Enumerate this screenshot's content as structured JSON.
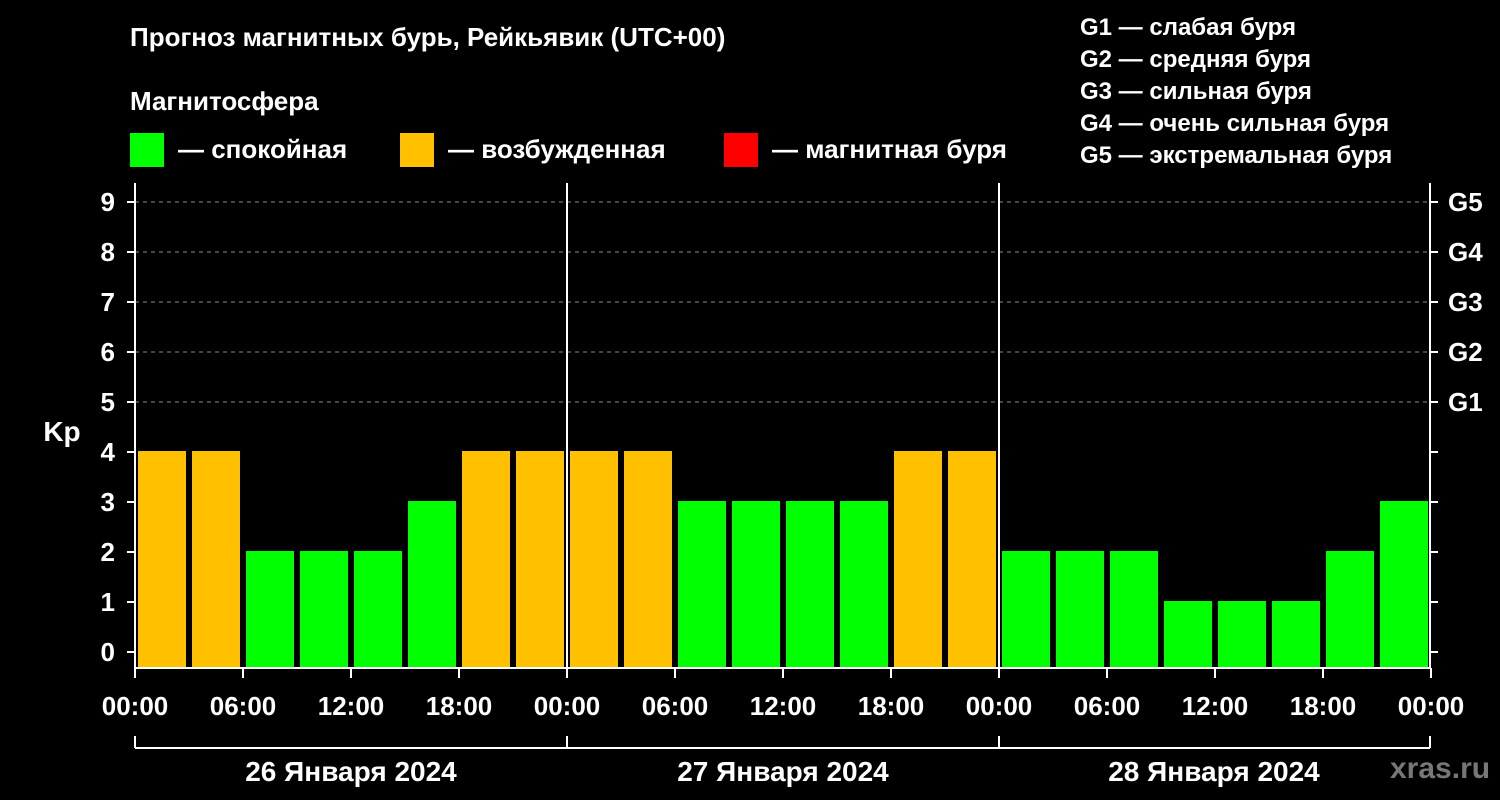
{
  "title": "Прогноз магнитных бурь, Рейкьявик (UTC+00)",
  "legend": {
    "heading": "Магнитосфера",
    "items": [
      {
        "label": "— спокойная",
        "color": "#00ff00"
      },
      {
        "label": "— возбужденная",
        "color": "#ffc000"
      },
      {
        "label": "— магнитная буря",
        "color": "#ff0000"
      }
    ]
  },
  "storm_levels": [
    "G1 — слабая буря",
    "G2 — средняя буря",
    "G3 — сильная буря",
    "G4 — очень сильная буря",
    "G5 — экстремальная буря"
  ],
  "watermark": "xras.ru",
  "chart_data": {
    "type": "bar",
    "ylabel": "Kp",
    "ylim": [
      0,
      9
    ],
    "y_ticks": [
      "0",
      "1",
      "2",
      "3",
      "4",
      "5",
      "6",
      "7",
      "8",
      "9"
    ],
    "right_ticks": [
      {
        "kp": 5,
        "label": "G1"
      },
      {
        "kp": 6,
        "label": "G2"
      },
      {
        "kp": 7,
        "label": "G3"
      },
      {
        "kp": 8,
        "label": "G4"
      },
      {
        "kp": 9,
        "label": "G5"
      }
    ],
    "grid": "horizontal dashed at Kp 5–9",
    "x_tick_labels": [
      "00:00",
      "06:00",
      "12:00",
      "18:00",
      "00:00",
      "06:00",
      "12:00",
      "18:00",
      "00:00",
      "06:00",
      "12:00",
      "18:00",
      "00:00"
    ],
    "days": [
      "26 Января 2024",
      "27 Января 2024",
      "28 Января 2024"
    ],
    "interval_hours": 3,
    "values": [
      4,
      4,
      2,
      2,
      2,
      3,
      4,
      4,
      4,
      4,
      3,
      3,
      3,
      3,
      4,
      4,
      2,
      2,
      2,
      1,
      1,
      1,
      2,
      3
    ],
    "colors": {
      "quiet": "#00ff00",
      "active": "#ffc000",
      "storm": "#ff0000"
    }
  }
}
